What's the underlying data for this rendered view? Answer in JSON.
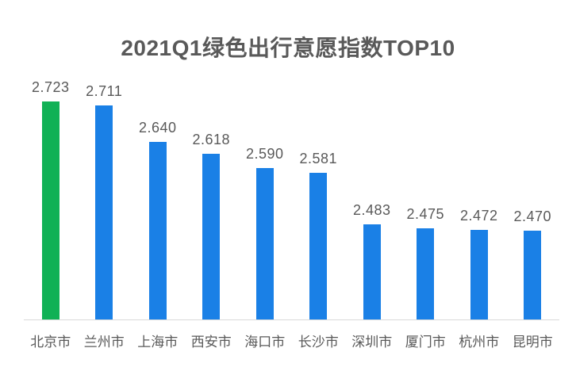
{
  "chart_data": {
    "type": "bar",
    "title": "2021Q1绿色出行意愿指数TOP10",
    "categories": [
      "北京市",
      "兰州市",
      "上海市",
      "西安市",
      "海口市",
      "长沙市",
      "深圳市",
      "厦门市",
      "杭州市",
      "昆明市"
    ],
    "values": [
      2.723,
      2.711,
      2.64,
      2.618,
      2.59,
      2.581,
      2.483,
      2.475,
      2.472,
      2.47
    ],
    "value_label_format": "3-decimals",
    "bar_colors": [
      "#10B155",
      "#1A80E6",
      "#1A80E6",
      "#1A80E6",
      "#1A80E6",
      "#1A80E6",
      "#1A80E6",
      "#1A80E6",
      "#1A80E6",
      "#1A80E6"
    ],
    "highlight_color": "#10B155",
    "default_color": "#1A80E6",
    "title_color": "#595959",
    "label_color": "#595959",
    "axis_line_color": "#D9D9D9",
    "xlabel": "",
    "ylabel": "",
    "ylim": [
      2.3,
      2.76
    ],
    "grid": false,
    "legend": false,
    "data_labels_shown": true,
    "x_axis_labels_shown": true,
    "y_axis_labels_shown": false
  }
}
